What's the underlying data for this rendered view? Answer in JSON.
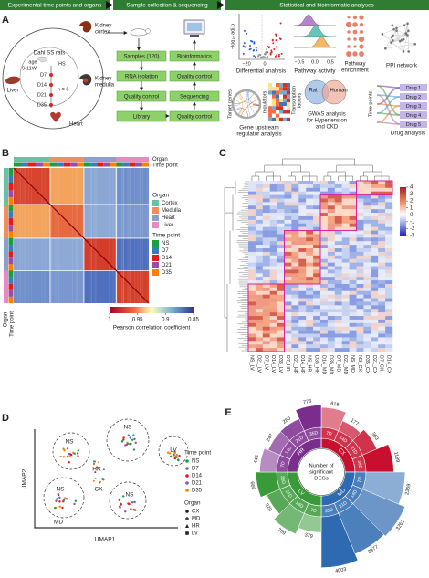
{
  "panel_a": {
    "letter": "A",
    "headers": [
      "Experimental time points and organs",
      "Sample collection & sequencing",
      "Statistical and bioinformatic analyses"
    ],
    "rats": "Dahl SS rats",
    "age": "age",
    "age_range": "9-11W",
    "diet": "HS",
    "time_points": [
      "D7",
      "D14",
      "D21",
      "D35"
    ],
    "n": "n = 6",
    "liver": "Liver",
    "kidney_cortex": [
      "Kidney",
      "cortex"
    ],
    "kidney_medulla": [
      "Kidney",
      "medulla"
    ],
    "heart": "Heart",
    "workflow_left": [
      "Samples (120)",
      "RNA isolation",
      "Quality control",
      "Library"
    ],
    "workflow_right": [
      "Bioinformatics",
      "Quality control",
      "Sequencing",
      "Quality control"
    ],
    "differential": {
      "ylabel": "−log₁₀ adj.p",
      "xticks": [
        "−20",
        "0"
      ],
      "label": "Differential analysis"
    },
    "pathway_activity": {
      "xticks": [
        "−0.5",
        "0.0",
        "0.5"
      ],
      "label": "Pathway activity"
    },
    "pathway_enrichment": {
      "label": [
        "Pathway",
        "enrichment"
      ]
    },
    "ppi": {
      "label": "PPI network"
    },
    "regulator": {
      "target": "Target genes",
      "regulators": "regulators",
      "tf": [
        "Transcription",
        "factors"
      ],
      "label": [
        "Gene upstream",
        "regulator analysis"
      ]
    },
    "gwas": {
      "venn": [
        "Rat",
        "Human"
      ],
      "label": [
        "GWAS analysis",
        "for Hypertension",
        "and CKD"
      ]
    },
    "drug": {
      "axis": "Time points",
      "drugs": [
        "Drug 1",
        "Drug 2",
        "Drug 3",
        "Drug 4",
        "Drug 5"
      ],
      "label": "Drug analysis"
    }
  },
  "panel_b": {
    "letter": "B",
    "annotation_labels": [
      "Organ",
      "Time point"
    ],
    "legend": {
      "organ_title": "Organ",
      "organs": [
        {
          "name": "Cortex",
          "color": "#66c2a5"
        },
        {
          "name": "Medulla",
          "color": "#f28e5c"
        },
        {
          "name": "Heart",
          "color": "#8da0cb"
        },
        {
          "name": "Liver",
          "color": "#e78ac3"
        }
      ],
      "time_title": "Time point",
      "times": [
        {
          "name": "NS",
          "color": "#1a9e3f"
        },
        {
          "name": "D7",
          "color": "#377eb8"
        },
        {
          "name": "D14",
          "color": "#e41a1c"
        },
        {
          "name": "D21",
          "color": "#984ea3"
        },
        {
          "name": "D35",
          "color": "#ff7f00"
        }
      ]
    },
    "colorbar": {
      "ticks": [
        1,
        0.95,
        0.9,
        0.85
      ],
      "label": "Pearson correlation coefficient"
    }
  },
  "panel_c": {
    "letter": "C",
    "columns": [
      "NS_LV",
      "D21_LV",
      "D7_LV",
      "D14_LV",
      "D35_LV",
      "D7_HR",
      "D21_HR",
      "D14_HR",
      "NS_HR",
      "D35_HR",
      "D14_MD",
      "D35_MD",
      "D7_MD",
      "D21_MD",
      "NS_MD",
      "NS_CX",
      "D35_CX",
      "D21_CX",
      "D7_CX",
      "D14_CX"
    ],
    "colorbar_ticks": [
      4,
      3,
      2,
      1,
      0,
      -1,
      -2,
      -3
    ]
  },
  "panel_d": {
    "letter": "D",
    "x_label": "UMAP1",
    "y_label": "UMAP2",
    "clusters": [
      "NS",
      "NS",
      "LV",
      "HR",
      "NS",
      "MD",
      "CX",
      "NS"
    ],
    "time_title": "Time point",
    "organ_title": "Organ",
    "organs": [
      "CX",
      "MD",
      "HR",
      "LV"
    ]
  },
  "panel_e": {
    "letter": "E"
  },
  "chart_data": {
    "type": "radial_bar",
    "title": [
      "Number of",
      "significant",
      "DEGs"
    ],
    "categories": [
      "7D",
      "14D",
      "21D",
      "35D"
    ],
    "series": [
      {
        "name": "CX",
        "color": "#c8102e",
        "values": [
          618,
          177,
          363,
          1189
        ]
      },
      {
        "name": "MD",
        "color": "#2d6ab1",
        "values": [
          2369,
          3262,
          2977,
          4003
        ]
      },
      {
        "name": "LV",
        "color": "#3a9a3a",
        "values": [
          379,
          769,
          320,
          666
        ]
      },
      {
        "name": "HR",
        "color": "#7b2d8e",
        "values": [
          443,
          247,
          260,
          773
        ]
      }
    ]
  }
}
